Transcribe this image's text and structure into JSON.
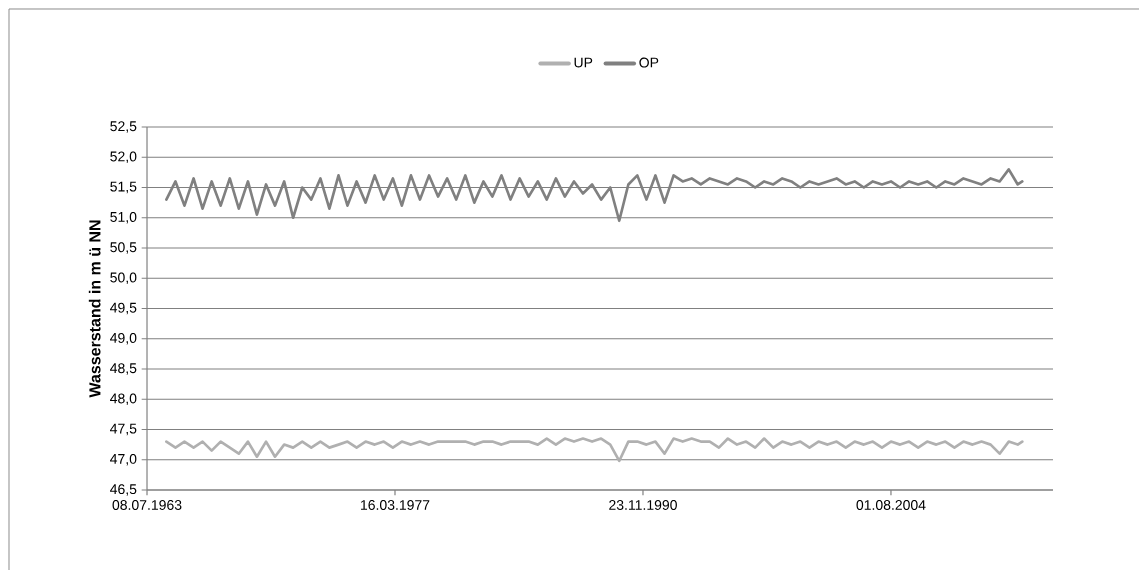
{
  "chart_data": {
    "type": "line",
    "ylabel": "Wasserstand in m ü NN",
    "x": [
      "1964-08",
      "1965-02",
      "1965-08",
      "1966-02",
      "1966-08",
      "1967-02",
      "1967-08",
      "1968-02",
      "1968-08",
      "1969-02",
      "1969-08",
      "1970-02",
      "1970-08",
      "1971-02",
      "1971-08",
      "1972-02",
      "1972-08",
      "1973-02",
      "1973-08",
      "1974-02",
      "1974-08",
      "1975-02",
      "1975-08",
      "1976-02",
      "1976-08",
      "1977-02",
      "1977-08",
      "1978-02",
      "1978-08",
      "1979-02",
      "1979-08",
      "1980-02",
      "1980-08",
      "1981-02",
      "1981-08",
      "1982-02",
      "1982-08",
      "1983-02",
      "1983-08",
      "1984-02",
      "1984-08",
      "1985-02",
      "1985-08",
      "1986-02",
      "1986-08",
      "1987-02",
      "1987-08",
      "1988-02",
      "1988-08",
      "1989-02",
      "1989-08",
      "1990-02",
      "1990-08",
      "1991-02",
      "1991-08",
      "1992-02",
      "1992-08",
      "1993-02",
      "1993-08",
      "1994-02",
      "1994-08",
      "1995-02",
      "1995-08",
      "1996-02",
      "1996-08",
      "1997-02",
      "1997-08",
      "1998-02",
      "1998-08",
      "1999-02",
      "1999-08",
      "2000-02",
      "2000-08",
      "2001-02",
      "2001-08",
      "2002-02",
      "2002-08",
      "2003-02",
      "2003-08",
      "2004-02",
      "2004-08",
      "2005-02",
      "2005-08",
      "2006-02",
      "2006-08",
      "2007-02",
      "2007-08",
      "2008-02",
      "2008-08",
      "2009-02",
      "2009-08",
      "2010-02",
      "2010-08",
      "2011-02",
      "2011-08",
      "2011-11"
    ],
    "series": [
      {
        "name": "UP",
        "color": "#b0b0b0",
        "values": [
          47.3,
          47.2,
          47.3,
          47.2,
          47.3,
          47.15,
          47.3,
          47.2,
          47.1,
          47.3,
          47.05,
          47.3,
          47.05,
          47.25,
          47.2,
          47.3,
          47.2,
          47.3,
          47.2,
          47.25,
          47.3,
          47.2,
          47.3,
          47.25,
          47.3,
          47.2,
          47.3,
          47.25,
          47.3,
          47.25,
          47.3,
          47.3,
          47.3,
          47.3,
          47.25,
          47.3,
          47.3,
          47.25,
          47.3,
          47.3,
          47.3,
          47.25,
          47.35,
          47.25,
          47.35,
          47.3,
          47.35,
          47.3,
          47.35,
          47.25,
          46.98,
          47.3,
          47.3,
          47.25,
          47.3,
          47.1,
          47.35,
          47.3,
          47.35,
          47.3,
          47.3,
          47.2,
          47.35,
          47.25,
          47.3,
          47.2,
          47.35,
          47.2,
          47.3,
          47.25,
          47.3,
          47.2,
          47.3,
          47.25,
          47.3,
          47.2,
          47.3,
          47.25,
          47.3,
          47.2,
          47.3,
          47.25,
          47.3,
          47.2,
          47.3,
          47.25,
          47.3,
          47.2,
          47.3,
          47.25,
          47.3,
          47.25,
          47.1,
          47.3,
          47.25,
          47.3
        ]
      },
      {
        "name": "OP",
        "color": "#808080",
        "values": [
          51.3,
          51.6,
          51.2,
          51.65,
          51.15,
          51.6,
          51.2,
          51.65,
          51.15,
          51.6,
          51.05,
          51.55,
          51.2,
          51.6,
          51.0,
          51.5,
          51.3,
          51.65,
          51.15,
          51.7,
          51.2,
          51.6,
          51.25,
          51.7,
          51.3,
          51.65,
          51.2,
          51.7,
          51.3,
          51.7,
          51.35,
          51.65,
          51.3,
          51.7,
          51.25,
          51.6,
          51.35,
          51.7,
          51.3,
          51.65,
          51.35,
          51.6,
          51.3,
          51.65,
          51.35,
          51.6,
          51.4,
          51.55,
          51.3,
          51.5,
          50.95,
          51.55,
          51.7,
          51.3,
          51.7,
          51.25,
          51.7,
          51.6,
          51.65,
          51.55,
          51.65,
          51.6,
          51.55,
          51.65,
          51.6,
          51.5,
          51.6,
          51.55,
          51.65,
          51.6,
          51.5,
          51.6,
          51.55,
          51.6,
          51.65,
          51.55,
          51.6,
          51.5,
          51.6,
          51.55,
          51.6,
          51.5,
          51.6,
          51.55,
          51.6,
          51.5,
          51.6,
          51.55,
          51.65,
          51.6,
          51.55,
          51.65,
          51.6,
          51.8,
          51.55,
          51.6
        ]
      }
    ],
    "xlim": [
      "1963-07-08",
      "2013-07-12"
    ],
    "xticks": [
      {
        "value": "1963-07-08",
        "label": "08.07.1963"
      },
      {
        "value": "1977-03-16",
        "label": "16.03.1977"
      },
      {
        "value": "1990-11-23",
        "label": "23.11.1990"
      },
      {
        "value": "2004-08-01",
        "label": "01.08.2004"
      }
    ],
    "ylim": [
      46.5,
      52.5
    ],
    "yticks": [
      {
        "value": 46.5,
        "label": "46,5"
      },
      {
        "value": 47.0,
        "label": "47,0"
      },
      {
        "value": 47.5,
        "label": "47,5"
      },
      {
        "value": 48.0,
        "label": "48,0"
      },
      {
        "value": 48.5,
        "label": "48,5"
      },
      {
        "value": 49.0,
        "label": "49,0"
      },
      {
        "value": 49.5,
        "label": "49,5"
      },
      {
        "value": 50.0,
        "label": "50,0"
      },
      {
        "value": 50.5,
        "label": "50,5"
      },
      {
        "value": 51.0,
        "label": "51,0"
      },
      {
        "value": 51.5,
        "label": "51,5"
      },
      {
        "value": 52.0,
        "label": "52,0"
      },
      {
        "value": 52.5,
        "label": "52,5"
      }
    ],
    "grid": "y",
    "legend": "top",
    "marker": "none",
    "line_style": "solid"
  }
}
